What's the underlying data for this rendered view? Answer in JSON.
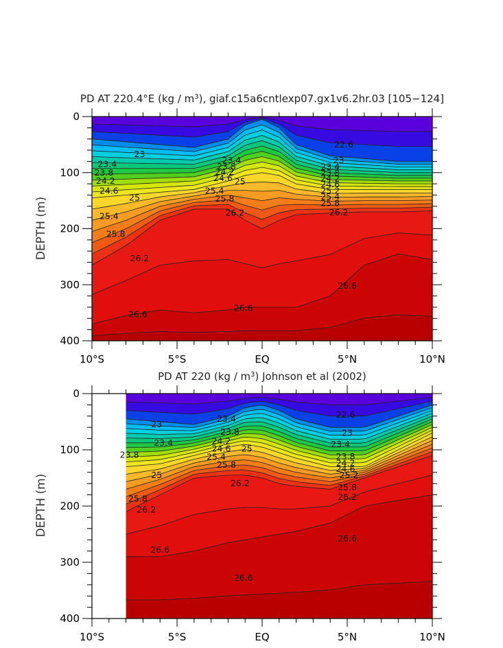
{
  "chart_data": [
    {
      "type": "contour",
      "title": "PD AT 220.4°E (kg / m³), giaf.c15a6cntlexp07.gx1v6.2hr.03 [105-124]",
      "title_main": "PD AT 220.4°E (kg / m",
      "title_sup": "3",
      "title_rest": "), giaf.c15a6cntlexp07.gx1v6.2hr.03 [105−124]",
      "ylabel": "DEPTH (m)",
      "xlim": [
        -10,
        10
      ],
      "ylim": [
        400,
        0
      ],
      "x_ticks": [
        -10,
        -5,
        0,
        5,
        10
      ],
      "x_tick_labels": [
        "10°S",
        "5°S",
        "EQ",
        "5°N",
        "10°N"
      ],
      "y_ticks": [
        0,
        100,
        200,
        300,
        400
      ],
      "y_tick_labels": [
        "0",
        "100",
        "200",
        "300",
        "400"
      ],
      "data_x_start": -10,
      "colorscale": "blue-to-red",
      "contour_interval": 0.2,
      "levels": [
        22.6,
        22.8,
        23.0,
        23.2,
        23.4,
        23.6,
        23.8,
        24.0,
        24.2,
        24.4,
        24.6,
        24.8,
        25.0,
        25.2,
        25.4,
        25.6,
        25.8,
        26.0,
        26.2,
        26.4,
        26.6,
        26.8
      ],
      "depth_profile": {
        "x": [
          -10,
          -8,
          -6,
          -4,
          -2,
          -1,
          0,
          1,
          2,
          4,
          6,
          8,
          10
        ],
        "23.0": [
          40,
          45,
          50,
          55,
          40,
          15,
          5,
          20,
          50,
          70,
          75,
          80,
          80
        ],
        "25.0": [
          145,
          140,
          135,
          130,
          115,
          105,
          100,
          105,
          120,
          130,
          130,
          130,
          130
        ],
        "26.2": [
          265,
          230,
          185,
          165,
          165,
          185,
          200,
          185,
          175,
          172,
          170,
          170,
          168
        ],
        "26.6": [
          370,
          355,
          345,
          350,
          345,
          340,
          340,
          340,
          340,
          320,
          265,
          245,
          255
        ]
      },
      "contour_labels": [
        {
          "text": "23",
          "x": -7.2,
          "y": 67
        },
        {
          "text": "23.4",
          "x": -9.1,
          "y": 85
        },
        {
          "text": "23.8",
          "x": -9.3,
          "y": 100
        },
        {
          "text": "24.2",
          "x": -9.2,
          "y": 115
        },
        {
          "text": "24.6",
          "x": -9.0,
          "y": 133
        },
        {
          "text": "25",
          "x": -7.5,
          "y": 145
        },
        {
          "text": "25.4",
          "x": -9.0,
          "y": 178
        },
        {
          "text": "25.8",
          "x": -8.6,
          "y": 210
        },
        {
          "text": "26.2",
          "x": -7.2,
          "y": 253
        },
        {
          "text": "26.6",
          "x": -7.3,
          "y": 353
        },
        {
          "text": "23.4",
          "x": -1.8,
          "y": 78
        },
        {
          "text": "23.8",
          "x": -2.1,
          "y": 89
        },
        {
          "text": "24.2",
          "x": -2.2,
          "y": 99
        },
        {
          "text": "24.6",
          "x": -2.3,
          "y": 110
        },
        {
          "text": "25",
          "x": -1.3,
          "y": 116
        },
        {
          "text": "25.4",
          "x": -2.8,
          "y": 133
        },
        {
          "text": "25.8",
          "x": -2.2,
          "y": 147
        },
        {
          "text": "26.2",
          "x": -1.6,
          "y": 172
        },
        {
          "text": "26.6",
          "x": -1.1,
          "y": 342
        },
        {
          "text": "22.6",
          "x": 4.8,
          "y": 50
        },
        {
          "text": "23",
          "x": 4.5,
          "y": 78
        },
        {
          "text": "23.4",
          "x": 4.0,
          "y": 90
        },
        {
          "text": "23.8",
          "x": 4.0,
          "y": 101
        },
        {
          "text": "24.2",
          "x": 4.0,
          "y": 111
        },
        {
          "text": "24.6",
          "x": 4.0,
          "y": 121
        },
        {
          "text": "25.2",
          "x": 4.0,
          "y": 133
        },
        {
          "text": "25.4",
          "x": 4.0,
          "y": 143
        },
        {
          "text": "25.8",
          "x": 4.0,
          "y": 155
        },
        {
          "text": "26.2",
          "x": 4.5,
          "y": 171
        },
        {
          "text": "26.6",
          "x": 5.0,
          "y": 302
        }
      ]
    },
    {
      "type": "contour",
      "title": "PD AT 220 (kg / m³) Johnson et al (2002)",
      "title_main": "PD AT 220 (kg / m",
      "title_sup": "3",
      "title_rest": ") Johnson et al (2002)",
      "ylabel": "DEPTH (m)",
      "xlim": [
        -10,
        10
      ],
      "ylim": [
        400,
        0
      ],
      "x_ticks": [
        -10,
        -5,
        0,
        5,
        10
      ],
      "x_tick_labels": [
        "10°S",
        "5°S",
        "EQ",
        "5°N",
        "10°N"
      ],
      "y_ticks": [
        0,
        100,
        200,
        300,
        400
      ],
      "y_tick_labels": [
        "0",
        "100",
        "200",
        "300",
        "400"
      ],
      "data_x_start": -8,
      "colorscale": "blue-to-red",
      "contour_interval": 0.2,
      "levels": [
        22.6,
        22.8,
        23.0,
        23.2,
        23.4,
        23.6,
        23.8,
        24.0,
        24.2,
        24.4,
        24.6,
        24.8,
        25.0,
        25.2,
        25.4,
        25.6,
        25.8,
        26.0,
        26.2,
        26.4,
        26.6,
        26.8
      ],
      "depth_profile": {
        "x": [
          -8,
          -6,
          -4,
          -2,
          -1,
          0,
          1,
          2,
          4,
          6,
          8,
          10
        ],
        "23.0": [
          45,
          50,
          55,
          40,
          25,
          20,
          30,
          45,
          60,
          60,
          40,
          20
        ],
        "25.0": [
          130,
          125,
          110,
          95,
          90,
          95,
          105,
          115,
          130,
          130,
          100,
          70
        ],
        "26.2": [
          210,
          180,
          150,
          145,
          145,
          150,
          160,
          165,
          170,
          150,
          130,
          110
        ],
        "26.6": [
          290,
          290,
          280,
          265,
          260,
          255,
          250,
          245,
          230,
          200,
          190,
          180
        ]
      },
      "contour_labels": [
        {
          "text": "23",
          "x": -6.2,
          "y": 55
        },
        {
          "text": "23.4",
          "x": -5.8,
          "y": 88
        },
        {
          "text": "23.8",
          "x": -7.8,
          "y": 109
        },
        {
          "text": "25",
          "x": -6.2,
          "y": 145
        },
        {
          "text": "25.8",
          "x": -7.3,
          "y": 187
        },
        {
          "text": "26.2",
          "x": -6.8,
          "y": 207
        },
        {
          "text": "26.6",
          "x": -6.0,
          "y": 278
        },
        {
          "text": "23.4",
          "x": -2.1,
          "y": 45
        },
        {
          "text": "23.8",
          "x": -1.9,
          "y": 68
        },
        {
          "text": "24.2",
          "x": -2.4,
          "y": 85
        },
        {
          "text": "24.6",
          "x": -2.4,
          "y": 98
        },
        {
          "text": "25",
          "x": -0.9,
          "y": 98
        },
        {
          "text": "25.4",
          "x": -2.7,
          "y": 113
        },
        {
          "text": "25.8",
          "x": -2.1,
          "y": 127
        },
        {
          "text": "26.2",
          "x": -1.3,
          "y": 160
        },
        {
          "text": "26.6",
          "x": -1.1,
          "y": 328
        },
        {
          "text": "22.6",
          "x": 4.9,
          "y": 38
        },
        {
          "text": "23",
          "x": 5.0,
          "y": 70
        },
        {
          "text": "23.4",
          "x": 4.6,
          "y": 90
        },
        {
          "text": "23.8",
          "x": 4.9,
          "y": 112
        },
        {
          "text": "24.2",
          "x": 4.9,
          "y": 124
        },
        {
          "text": "24.6",
          "x": 4.9,
          "y": 134
        },
        {
          "text": "25.2",
          "x": 5.1,
          "y": 145
        },
        {
          "text": "25.8",
          "x": 5.0,
          "y": 167
        },
        {
          "text": "26.2",
          "x": 5.0,
          "y": 184
        },
        {
          "text": "26.6",
          "x": 5.0,
          "y": 258
        }
      ]
    }
  ]
}
